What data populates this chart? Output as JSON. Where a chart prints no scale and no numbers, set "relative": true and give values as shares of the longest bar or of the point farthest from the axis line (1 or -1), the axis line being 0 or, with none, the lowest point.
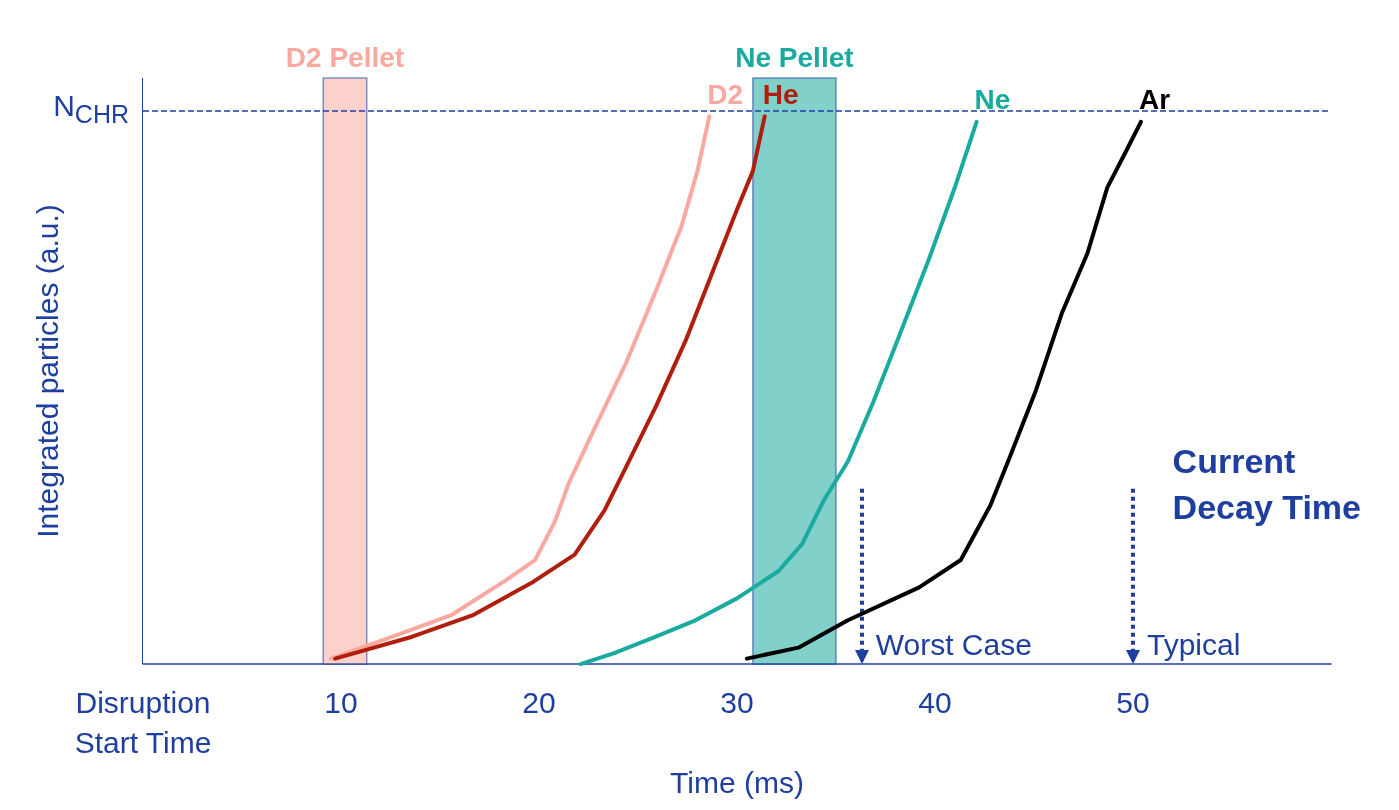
{
  "chart_data": {
    "type": "line",
    "relative": true,
    "xlabel": "Time (ms)",
    "ylabel": "Integrated particles (a.u.)",
    "xlim": [
      0,
      60
    ],
    "xticks": [
      {
        "value": 0,
        "label": "Disruption\nStart Time"
      },
      10,
      20,
      30,
      40,
      50
    ],
    "legend": false,
    "grid": false,
    "marker": "none",
    "line_style": "solid",
    "series": [
      {
        "name": "D2",
        "color": "#f9a9a0",
        "x": [
          9.5,
          12.6,
          15.6,
          18.2,
          19.8,
          20.8,
          21.5,
          22.8,
          24.4,
          26,
          27.2,
          28,
          28.6
        ],
        "values": [
          0.01,
          0.05,
          0.09,
          0.15,
          0.19,
          0.26,
          0.33,
          0.43,
          0.55,
          0.69,
          0.8,
          0.9,
          1
        ]
      },
      {
        "name": "He",
        "color": "#b01e0e",
        "x": [
          9.7,
          13.6,
          16.7,
          19.7,
          21.8,
          23.3,
          24.4,
          25.9,
          27.4,
          28.7,
          30,
          30.8,
          31.4
        ],
        "values": [
          0.01,
          0.05,
          0.09,
          0.15,
          0.2,
          0.28,
          0.36,
          0.47,
          0.59,
          0.71,
          0.83,
          0.9,
          1
        ]
      },
      {
        "name": "Ne",
        "color": "#1aaa9f",
        "x": [
          22.1,
          23.8,
          25.9,
          27.9,
          30,
          32.1,
          33.3,
          34.4,
          35.6,
          36.9,
          38.2,
          39.7,
          41,
          42.1
        ],
        "values": [
          0,
          0.02,
          0.05,
          0.08,
          0.12,
          0.17,
          0.22,
          0.3,
          0.37,
          0.48,
          0.6,
          0.74,
          0.87,
          0.99
        ]
      },
      {
        "name": "Ar",
        "color": "#000000",
        "x": [
          30.5,
          33.1,
          35.6,
          39.2,
          41.3,
          42.8,
          43.8,
          45.1,
          46.4,
          47.7,
          48.7,
          49.7,
          50.4
        ],
        "values": [
          0.01,
          0.03,
          0.08,
          0.14,
          0.19,
          0.29,
          0.38,
          0.5,
          0.64,
          0.75,
          0.87,
          0.94,
          0.99
        ]
      }
    ],
    "ref_lines": [
      {
        "axis": "y",
        "value": 1.01,
        "label": "N$_{CHR}$",
        "line_style": "dashed",
        "color": "#1f3fa0"
      },
      {
        "axis": "x",
        "value": 36.3,
        "label": "Worst Case",
        "line_style": "dotted",
        "color": "#1f3fa0"
      },
      {
        "axis": "x",
        "value": 50,
        "label": "Typical",
        "line_style": "dotted",
        "color": "#1f3fa0"
      }
    ],
    "bands": [
      {
        "axis": "x",
        "from": 9.1,
        "to": 11.3,
        "label": "D2 Pellet",
        "color": "#f9a9a0"
      },
      {
        "axis": "x",
        "from": 30.8,
        "to": 35,
        "label": "Ne Pellet",
        "color": "#1aaa9f"
      }
    ],
    "annotations": [
      "Current\nDecay Time"
    ]
  }
}
